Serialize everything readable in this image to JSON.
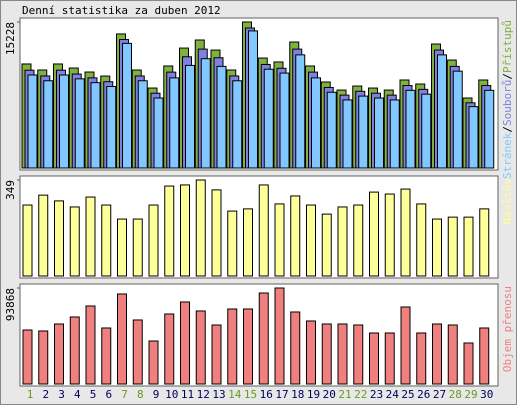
{
  "chart_data": [
    {
      "type": "bar",
      "title": "Denní statistika za duben 2012",
      "categories": [
        "1",
        "2",
        "3",
        "4",
        "5",
        "6",
        "7",
        "8",
        "9",
        "10",
        "11",
        "12",
        "13",
        "14",
        "15",
        "16",
        "17",
        "18",
        "19",
        "20",
        "21",
        "22",
        "23",
        "24",
        "25",
        "26",
        "27",
        "28",
        "29",
        "30"
      ],
      "category_colors": [
        "#6a9a22",
        "#00005a",
        "#00005a",
        "#00005a",
        "#00005a",
        "#00005a",
        "#6a9a22",
        "#6a9a22",
        "#00005a",
        "#00005a",
        "#00005a",
        "#00005a",
        "#00005a",
        "#6a9a22",
        "#6a9a22",
        "#00005a",
        "#00005a",
        "#00005a",
        "#00005a",
        "#00005a",
        "#6a9a22",
        "#6a9a22",
        "#00005a",
        "#00005a",
        "#00005a",
        "#00005a",
        "#00005a",
        "#6a9a22",
        "#6a9a22",
        "#00005a"
      ],
      "legend_separator": "/",
      "series": [
        {
          "name": "Přístupů",
          "color": "#80b040",
          "values": [
            10850,
            10220,
            10850,
            10430,
            10010,
            9590,
            13980,
            10220,
            8340,
            10640,
            12510,
            13350,
            12300,
            10220,
            15228,
            11470,
            11060,
            13140,
            10640,
            8970,
            8130,
            8550,
            8340,
            8130,
            9180,
            8760,
            12930,
            11260,
            7300,
            9180
          ]
        },
        {
          "name": "Souborů",
          "color": "#8080e0",
          "values": [
            10200,
            9600,
            10200,
            9800,
            9400,
            9000,
            13400,
            9600,
            7800,
            10000,
            11600,
            12400,
            11500,
            9600,
            14600,
            10800,
            10400,
            12400,
            10000,
            8400,
            7600,
            8000,
            7800,
            7600,
            8600,
            8200,
            12300,
            10600,
            6800,
            8600
          ]
        },
        {
          "name": "Stránek",
          "color": "#80c8ff",
          "values": [
            9700,
            9100,
            9700,
            9300,
            8900,
            8500,
            13000,
            9100,
            7300,
            9400,
            10700,
            11400,
            10600,
            9100,
            14300,
            10300,
            9900,
            11800,
            9400,
            7900,
            7100,
            7500,
            7300,
            7100,
            8100,
            7700,
            11800,
            10100,
            6400,
            8100
          ]
        }
      ],
      "ylim": [
        0,
        15228
      ],
      "yticks": [
        15228
      ]
    },
    {
      "type": "bar",
      "series": [
        {
          "name": "Návštěv",
          "color": "#ffff99",
          "values": [
            258,
            294,
            273,
            251,
            287,
            258,
            207,
            207,
            258,
            327,
            331,
            349,
            313,
            236,
            244,
            331,
            262,
            291,
            258,
            225,
            251,
            258,
            305,
            298,
            316,
            262,
            207,
            214,
            214,
            244
          ]
        }
      ],
      "ylim": [
        0,
        349
      ],
      "yticks": [
        349
      ]
    },
    {
      "type": "bar",
      "series": [
        {
          "name": "Objem přenosu",
          "color": "#f08080",
          "values": [
            52800,
            51840,
            58680,
            65530,
            76290,
            54770,
            88020,
            62600,
            42050,
            68460,
            80200,
            71400,
            57700,
            73350,
            73350,
            89000,
            93868,
            70420,
            61620,
            58680,
            58680,
            57700,
            49880,
            49880,
            75310,
            49880,
            58680,
            57700,
            40100,
            54770
          ]
        }
      ],
      "ylim": [
        0,
        93868
      ],
      "yticks": [
        93868
      ]
    }
  ]
}
